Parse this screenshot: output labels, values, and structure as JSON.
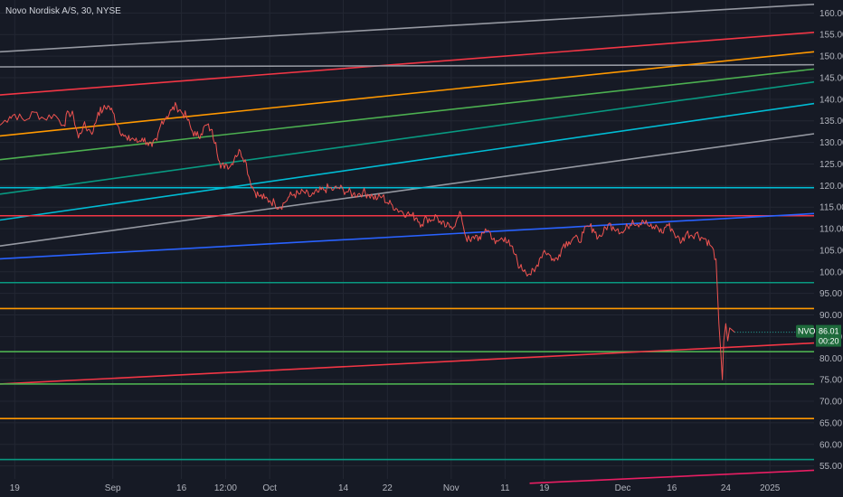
{
  "title": "Novo Nordisk A/S, 30, NYSE",
  "chart_data": {
    "type": "line",
    "title": "Novo Nordisk A/S, 30, NYSE",
    "ylim": [
      52,
      163
    ],
    "y_ticks": [
      55,
      60,
      65,
      70,
      75,
      80,
      85,
      90,
      95,
      100,
      105,
      110,
      115,
      120,
      125,
      130,
      135,
      140,
      145,
      150,
      155,
      160
    ],
    "x_tick_labels": [
      {
        "label": "19",
        "bar": 0
      },
      {
        "label": "Sep",
        "bar": 20
      },
      {
        "label": "16",
        "bar": 34
      },
      {
        "label": "12:00",
        "bar": 43
      },
      {
        "label": "Oct",
        "bar": 52
      },
      {
        "label": "14",
        "bar": 67
      },
      {
        "label": "22",
        "bar": 76
      },
      {
        "label": "Nov",
        "bar": 89
      },
      {
        "label": "11",
        "bar": 100
      },
      {
        "label": "19",
        "bar": 108
      },
      {
        "label": "Dec",
        "bar": 124
      },
      {
        "label": "16",
        "bar": 134
      },
      {
        "label": "24",
        "bar": 145
      },
      {
        "label": "2025",
        "bar": 154
      }
    ],
    "x_range": [
      -3,
      163
    ],
    "price_series": {
      "name": "NVO",
      "color": "#ef5350",
      "points": [
        [
          -3,
          134
        ],
        [
          -1,
          136
        ],
        [
          0,
          136.5
        ],
        [
          2,
          135
        ],
        [
          4,
          137
        ],
        [
          6,
          135.5
        ],
        [
          8,
          136.5
        ],
        [
          10,
          134
        ],
        [
          11,
          137
        ],
        [
          12,
          136
        ],
        [
          13,
          131
        ],
        [
          14,
          134
        ],
        [
          15,
          133
        ],
        [
          16,
          132.5
        ],
        [
          17,
          137
        ],
        [
          18,
          137.5
        ],
        [
          19,
          138.5
        ],
        [
          20,
          137
        ],
        [
          21,
          134
        ],
        [
          22,
          132
        ],
        [
          23,
          130.5
        ],
        [
          24,
          131
        ],
        [
          25,
          130
        ],
        [
          26,
          131
        ],
        [
          27,
          130
        ],
        [
          28,
          129
        ],
        [
          29,
          130.5
        ],
        [
          30,
          135
        ],
        [
          31,
          136
        ],
        [
          32,
          137.5
        ],
        [
          33,
          138.5
        ],
        [
          34,
          137
        ],
        [
          35,
          136
        ],
        [
          36,
          133
        ],
        [
          37,
          131.5
        ],
        [
          38,
          132
        ],
        [
          39,
          134
        ],
        [
          40,
          133
        ],
        [
          41,
          130
        ],
        [
          42,
          124
        ],
        [
          43,
          125
        ],
        [
          44,
          124.5
        ],
        [
          45,
          127
        ],
        [
          46,
          128
        ],
        [
          47,
          126
        ],
        [
          48,
          121
        ],
        [
          49,
          118.5
        ],
        [
          50,
          117.5
        ],
        [
          51,
          117
        ],
        [
          52,
          116.5
        ],
        [
          53,
          116
        ],
        [
          54,
          115
        ],
        [
          55,
          116
        ],
        [
          56,
          117.5
        ],
        [
          57,
          118
        ],
        [
          58,
          118
        ],
        [
          59,
          118.5
        ],
        [
          60,
          117.5
        ],
        [
          61,
          118
        ],
        [
          62,
          118.5
        ],
        [
          63,
          119
        ],
        [
          64,
          119.5
        ],
        [
          65,
          119
        ],
        [
          66,
          119.5
        ],
        [
          67,
          119
        ],
        [
          68,
          118.5
        ],
        [
          69,
          118
        ],
        [
          70,
          118
        ],
        [
          71,
          118.5
        ],
        [
          72,
          118
        ],
        [
          73,
          117.5
        ],
        [
          74,
          117
        ],
        [
          75,
          117.5
        ],
        [
          76,
          116
        ],
        [
          77,
          115.5
        ],
        [
          78,
          114.5
        ],
        [
          79,
          114
        ],
        [
          80,
          113.5
        ],
        [
          81,
          113
        ],
        [
          82,
          112.5
        ],
        [
          83,
          111
        ],
        [
          84,
          112.5
        ],
        [
          85,
          112
        ],
        [
          86,
          113
        ],
        [
          87,
          111
        ],
        [
          88,
          110.5
        ],
        [
          89,
          110.5
        ],
        [
          90,
          111.5
        ],
        [
          91,
          113.5
        ],
        [
          92,
          108
        ],
        [
          93,
          107
        ],
        [
          94,
          108.5
        ],
        [
          95,
          107.5
        ],
        [
          96,
          110
        ],
        [
          97,
          109
        ],
        [
          98,
          106.5
        ],
        [
          99,
          107.5
        ],
        [
          100,
          108
        ],
        [
          101,
          106
        ],
        [
          102,
          104
        ],
        [
          103,
          101
        ],
        [
          104,
          100.5
        ],
        [
          105,
          99.5
        ],
        [
          106,
          100
        ],
        [
          107,
          103
        ],
        [
          108,
          105
        ],
        [
          109,
          104
        ],
        [
          110,
          102.5
        ],
        [
          111,
          104
        ],
        [
          112,
          106.5
        ],
        [
          113,
          107
        ],
        [
          114,
          108
        ],
        [
          115,
          107
        ],
        [
          116,
          109
        ],
        [
          117,
          110.5
        ],
        [
          118,
          110
        ],
        [
          119,
          108
        ],
        [
          120,
          109
        ],
        [
          121,
          111
        ],
        [
          122,
          110.5
        ],
        [
          123,
          110
        ],
        [
          124,
          109
        ],
        [
          125,
          110.5
        ],
        [
          126,
          112
        ],
        [
          127,
          111
        ],
        [
          128,
          112
        ],
        [
          129,
          111
        ],
        [
          130,
          110
        ],
        [
          131,
          110.5
        ],
        [
          132,
          109
        ],
        [
          133,
          111
        ],
        [
          134,
          110
        ],
        [
          135,
          108
        ],
        [
          136,
          107
        ],
        [
          137,
          109
        ],
        [
          138,
          108.5
        ],
        [
          139,
          109
        ],
        [
          140,
          108
        ],
        [
          141,
          107.5
        ],
        [
          142,
          106
        ],
        [
          143,
          103
        ],
        [
          143.6,
          88
        ],
        [
          144,
          81
        ],
        [
          144.3,
          75
        ],
        [
          144.6,
          84
        ],
        [
          145,
          88
        ],
        [
          145.4,
          84
        ],
        [
          145.8,
          87
        ],
        [
          146.3,
          86.5
        ],
        [
          146.8,
          86.01
        ]
      ],
      "last_value": 86.01,
      "last_label": "86.01",
      "countdown": "00:20"
    },
    "trend_lines": [
      {
        "color": "#9598a1",
        "points": [
          [
            -3,
            151
          ],
          [
            163,
            162
          ]
        ]
      },
      {
        "color": "#f23645",
        "points": [
          [
            -3,
            141
          ],
          [
            163,
            155.5
          ]
        ]
      },
      {
        "color": "#9598a1",
        "points": [
          [
            -3,
            147.5
          ],
          [
            163,
            148
          ]
        ]
      },
      {
        "color": "#ff9800",
        "points": [
          [
            -3,
            131.5
          ],
          [
            163,
            151
          ]
        ]
      },
      {
        "color": "#4caf50",
        "points": [
          [
            -3,
            126
          ],
          [
            163,
            147
          ]
        ]
      },
      {
        "color": "#089981",
        "points": [
          [
            -3,
            118
          ],
          [
            163,
            144
          ]
        ]
      },
      {
        "color": "#00bcd4",
        "points": [
          [
            -3,
            112
          ],
          [
            163,
            139
          ]
        ]
      },
      {
        "color": "#9598a1",
        "points": [
          [
            -3,
            106
          ],
          [
            163,
            132
          ]
        ]
      },
      {
        "color": "#00bcd4",
        "points": [
          [
            -3,
            119.5
          ],
          [
            163,
            119.5
          ]
        ]
      },
      {
        "color": "#f23645",
        "points": [
          [
            -3,
            113
          ],
          [
            163,
            113
          ]
        ]
      },
      {
        "color": "#2962ff",
        "points": [
          [
            -3,
            103
          ],
          [
            163,
            113.5
          ]
        ]
      },
      {
        "color": "#089981",
        "points": [
          [
            -3,
            97.5
          ],
          [
            163,
            97.5
          ]
        ]
      },
      {
        "color": "#ff9800",
        "points": [
          [
            -3,
            91.5
          ],
          [
            163,
            91.5
          ]
        ]
      },
      {
        "color": "#4caf50",
        "points": [
          [
            -3,
            81.5
          ],
          [
            163,
            81.5
          ]
        ]
      },
      {
        "color": "#f23645",
        "points": [
          [
            -3,
            74
          ],
          [
            163,
            83.5
          ]
        ]
      },
      {
        "color": "#4caf50",
        "points": [
          [
            -3,
            74
          ],
          [
            163,
            74
          ]
        ]
      },
      {
        "color": "#ff9800",
        "points": [
          [
            -3,
            66
          ],
          [
            163,
            66
          ]
        ]
      },
      {
        "color": "#089981",
        "points": [
          [
            -3,
            56.5
          ],
          [
            163,
            56.5
          ]
        ]
      },
      {
        "color": "#e91e63",
        "points": [
          [
            105,
            51
          ],
          [
            163,
            54
          ]
        ]
      }
    ]
  },
  "colors": {
    "background": "#161a25",
    "grid": "#232733",
    "axis_text": "#b2b5be",
    "price_tag": "#1e6a3b",
    "countdown_tag": "#1e6a3b"
  }
}
